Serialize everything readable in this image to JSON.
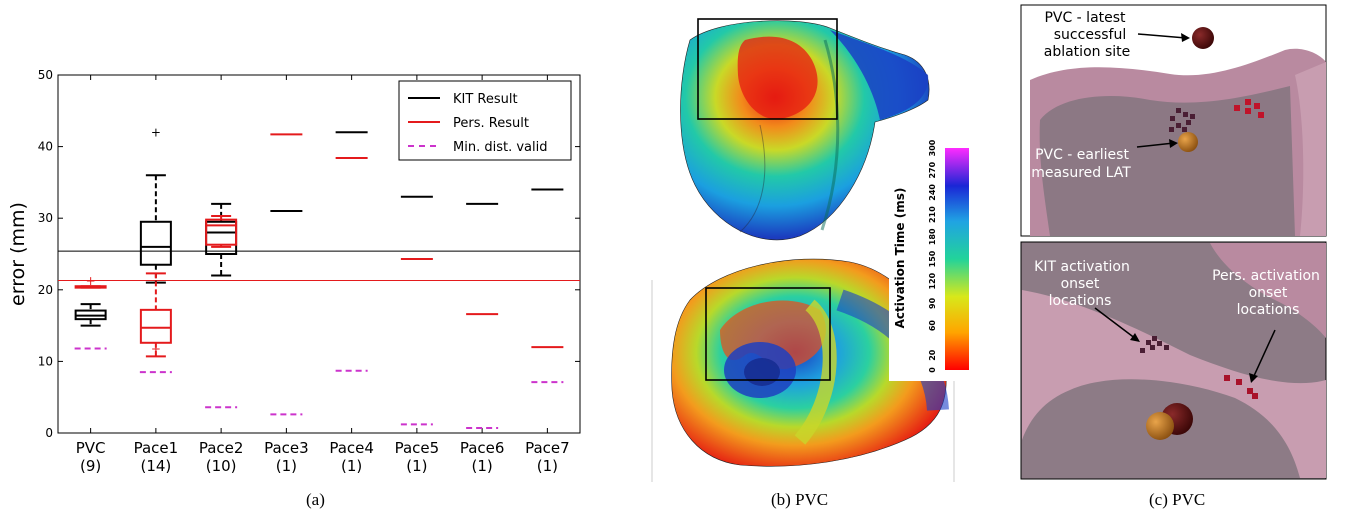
{
  "captions": {
    "a": "(a)",
    "b": "(b) PVC",
    "c": "(c) PVC"
  },
  "chart_data": {
    "type": "box",
    "ylabel": "error (mm)",
    "xlabel": "",
    "ylim": [
      0,
      50
    ],
    "yticks": [
      0,
      10,
      20,
      30,
      40,
      50
    ],
    "categories": [
      "PVC",
      "Pace1",
      "Pace2",
      "Pace3",
      "Pace4",
      "Pace5",
      "Pace6",
      "Pace7"
    ],
    "category_counts": [
      "(9)",
      "(14)",
      "(10)",
      "(1)",
      "(1)",
      "(1)",
      "(1)",
      "(1)"
    ],
    "legend": {
      "placement": "top-right",
      "entries": [
        {
          "label": "KIT Result",
          "color": "#000000",
          "style": "solid"
        },
        {
          "label": "Pers. Result",
          "color": "#e41a1c",
          "style": "solid"
        },
        {
          "label": "Min. dist. valid",
          "color": "#cc33cc",
          "style": "dashed"
        }
      ]
    },
    "reference_lines": [
      {
        "series": "KIT Result",
        "y": 25.4,
        "color": "#000000"
      },
      {
        "series": "Pers. Result",
        "y": 21.3,
        "color": "#e41a1c"
      }
    ],
    "series": [
      {
        "name": "KIT Result",
        "color": "#000000",
        "boxes": [
          {
            "category": "PVC",
            "whisker_low": 15.0,
            "q1": 15.9,
            "median": 16.4,
            "q3": 17.1,
            "whisker_high": 18.0,
            "outliers": []
          },
          {
            "category": "Pace1",
            "whisker_low": 21.0,
            "q1": 23.5,
            "median": 26.0,
            "q3": 29.5,
            "whisker_high": 36.0,
            "outliers": [
              42.0
            ]
          },
          {
            "category": "Pace2",
            "whisker_low": 22.0,
            "q1": 25.0,
            "median": 28.0,
            "q3": 29.5,
            "whisker_high": 32.0,
            "outliers": []
          }
        ],
        "single_values": [
          {
            "category": "Pace3",
            "value": 31.0
          },
          {
            "category": "Pace4",
            "value": 42.0
          },
          {
            "category": "Pace5",
            "value": 33.0
          },
          {
            "category": "Pace6",
            "value": 32.0
          },
          {
            "category": "Pace7",
            "value": 34.0
          }
        ]
      },
      {
        "name": "Pers. Result",
        "color": "#e41a1c",
        "boxes": [
          {
            "category": "PVC",
            "whisker_low": 20.3,
            "q1": 20.3,
            "median": 20.4,
            "q3": 20.5,
            "whisker_high": 20.5,
            "outliers": [
              21.2
            ]
          },
          {
            "category": "Pace1",
            "whisker_low": 10.7,
            "q1": 12.6,
            "median": 14.7,
            "q3": 17.2,
            "whisker_high": 22.3,
            "outliers": [
              11.7
            ]
          },
          {
            "category": "Pace2",
            "whisker_low": 26.0,
            "q1": 26.3,
            "median": 29.0,
            "q3": 29.8,
            "whisker_high": 30.3,
            "outliers": []
          }
        ],
        "single_values": [
          {
            "category": "Pace3",
            "value": 41.7
          },
          {
            "category": "Pace4",
            "value": 38.4
          },
          {
            "category": "Pace5",
            "value": 24.3
          },
          {
            "category": "Pace6",
            "value": 16.6
          },
          {
            "category": "Pace7",
            "value": 12.0
          }
        ]
      },
      {
        "name": "Min. dist. valid",
        "color": "#cc33cc",
        "values": [
          11.8,
          8.5,
          3.6,
          2.6,
          8.7,
          1.2,
          0.7,
          7.1
        ]
      }
    ]
  },
  "colorbar": {
    "label": "Activation Time (ms)",
    "ticks": [
      "0",
      "20",
      "60",
      "90",
      "120",
      "150",
      "180",
      "210",
      "240",
      "270",
      "300"
    ]
  },
  "panel_c": {
    "top_labels": [
      "PVC - latest",
      "successful",
      "ablation site",
      "PVC - earliest",
      "measured LAT"
    ],
    "bottom_labels": [
      "KIT activation",
      "onset",
      "locations",
      "Pers. activation",
      "onset",
      "locations"
    ]
  }
}
